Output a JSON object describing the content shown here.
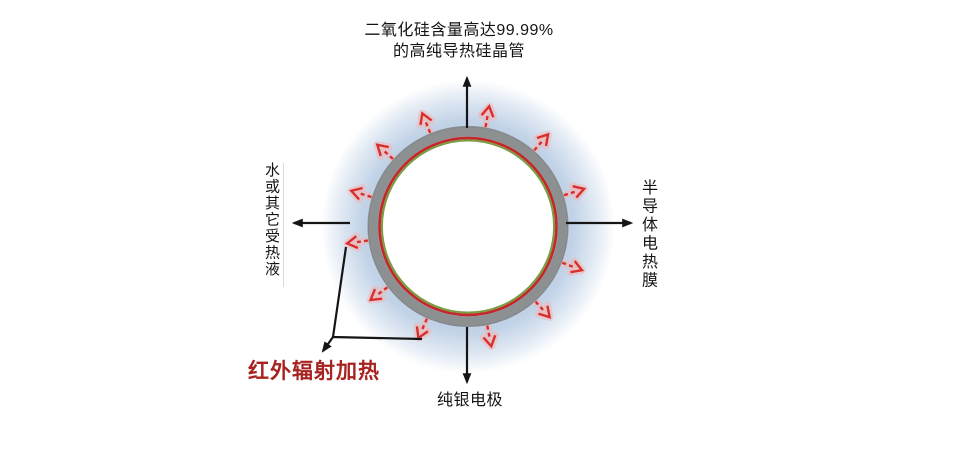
{
  "diagram": {
    "top_label": {
      "line1": "二氧化硅含量高达99.99%",
      "line2": "的高纯导热硅晶管"
    },
    "right_label": "半导体电热膜",
    "left_label": "水或其它受热液",
    "infrared_label": "红外辐射加热",
    "bottom_label": "纯银电极",
    "colors": {
      "glow_blue": "#b7cbe3",
      "tube_gray": "#8d9091",
      "tube_rim_gray": "#797c7e",
      "film_red": "#c4272b",
      "electrode_green": "#7d9c3e",
      "radiation_red": "#d92f2c",
      "radiation_halo": "#f0b6b6",
      "infrared_text_red": "#a6231f",
      "line_black": "#151515",
      "text_black": "#141414"
    },
    "radiation_arrows": {
      "count": 12,
      "angles_deg": [
        18,
        49,
        80,
        112,
        138,
        163,
        188,
        217,
        246,
        281,
        312,
        339
      ]
    }
  }
}
